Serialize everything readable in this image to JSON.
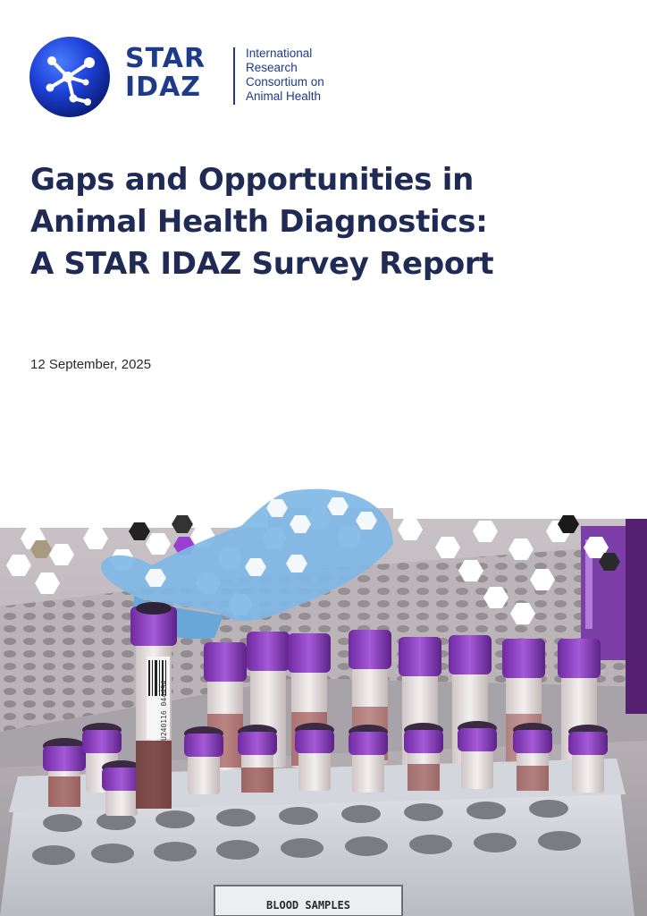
{
  "logo": {
    "wordmark": [
      "STAR",
      "IDAZ"
    ],
    "tagline": [
      "International",
      "Research",
      "Consortium on",
      "Animal Health"
    ],
    "colors": {
      "brand_navy": "#1e3a8a",
      "orb": "#1d3fd6"
    },
    "icon": "molecule-network-icon"
  },
  "title_lines": [
    "Gaps and Opportunities in",
    "Animal Health Diagnostics:",
    "A STAR IDAZ Survey Report"
  ],
  "date": "12 September, 2025",
  "cover_image": {
    "rack_label": "BLOOD SAMPLES",
    "tube_barcode": "U240116 044494",
    "colors": {
      "cap": "#8f3fc4",
      "glove": "#7fb8e6",
      "rack": "#d9dce2"
    }
  }
}
